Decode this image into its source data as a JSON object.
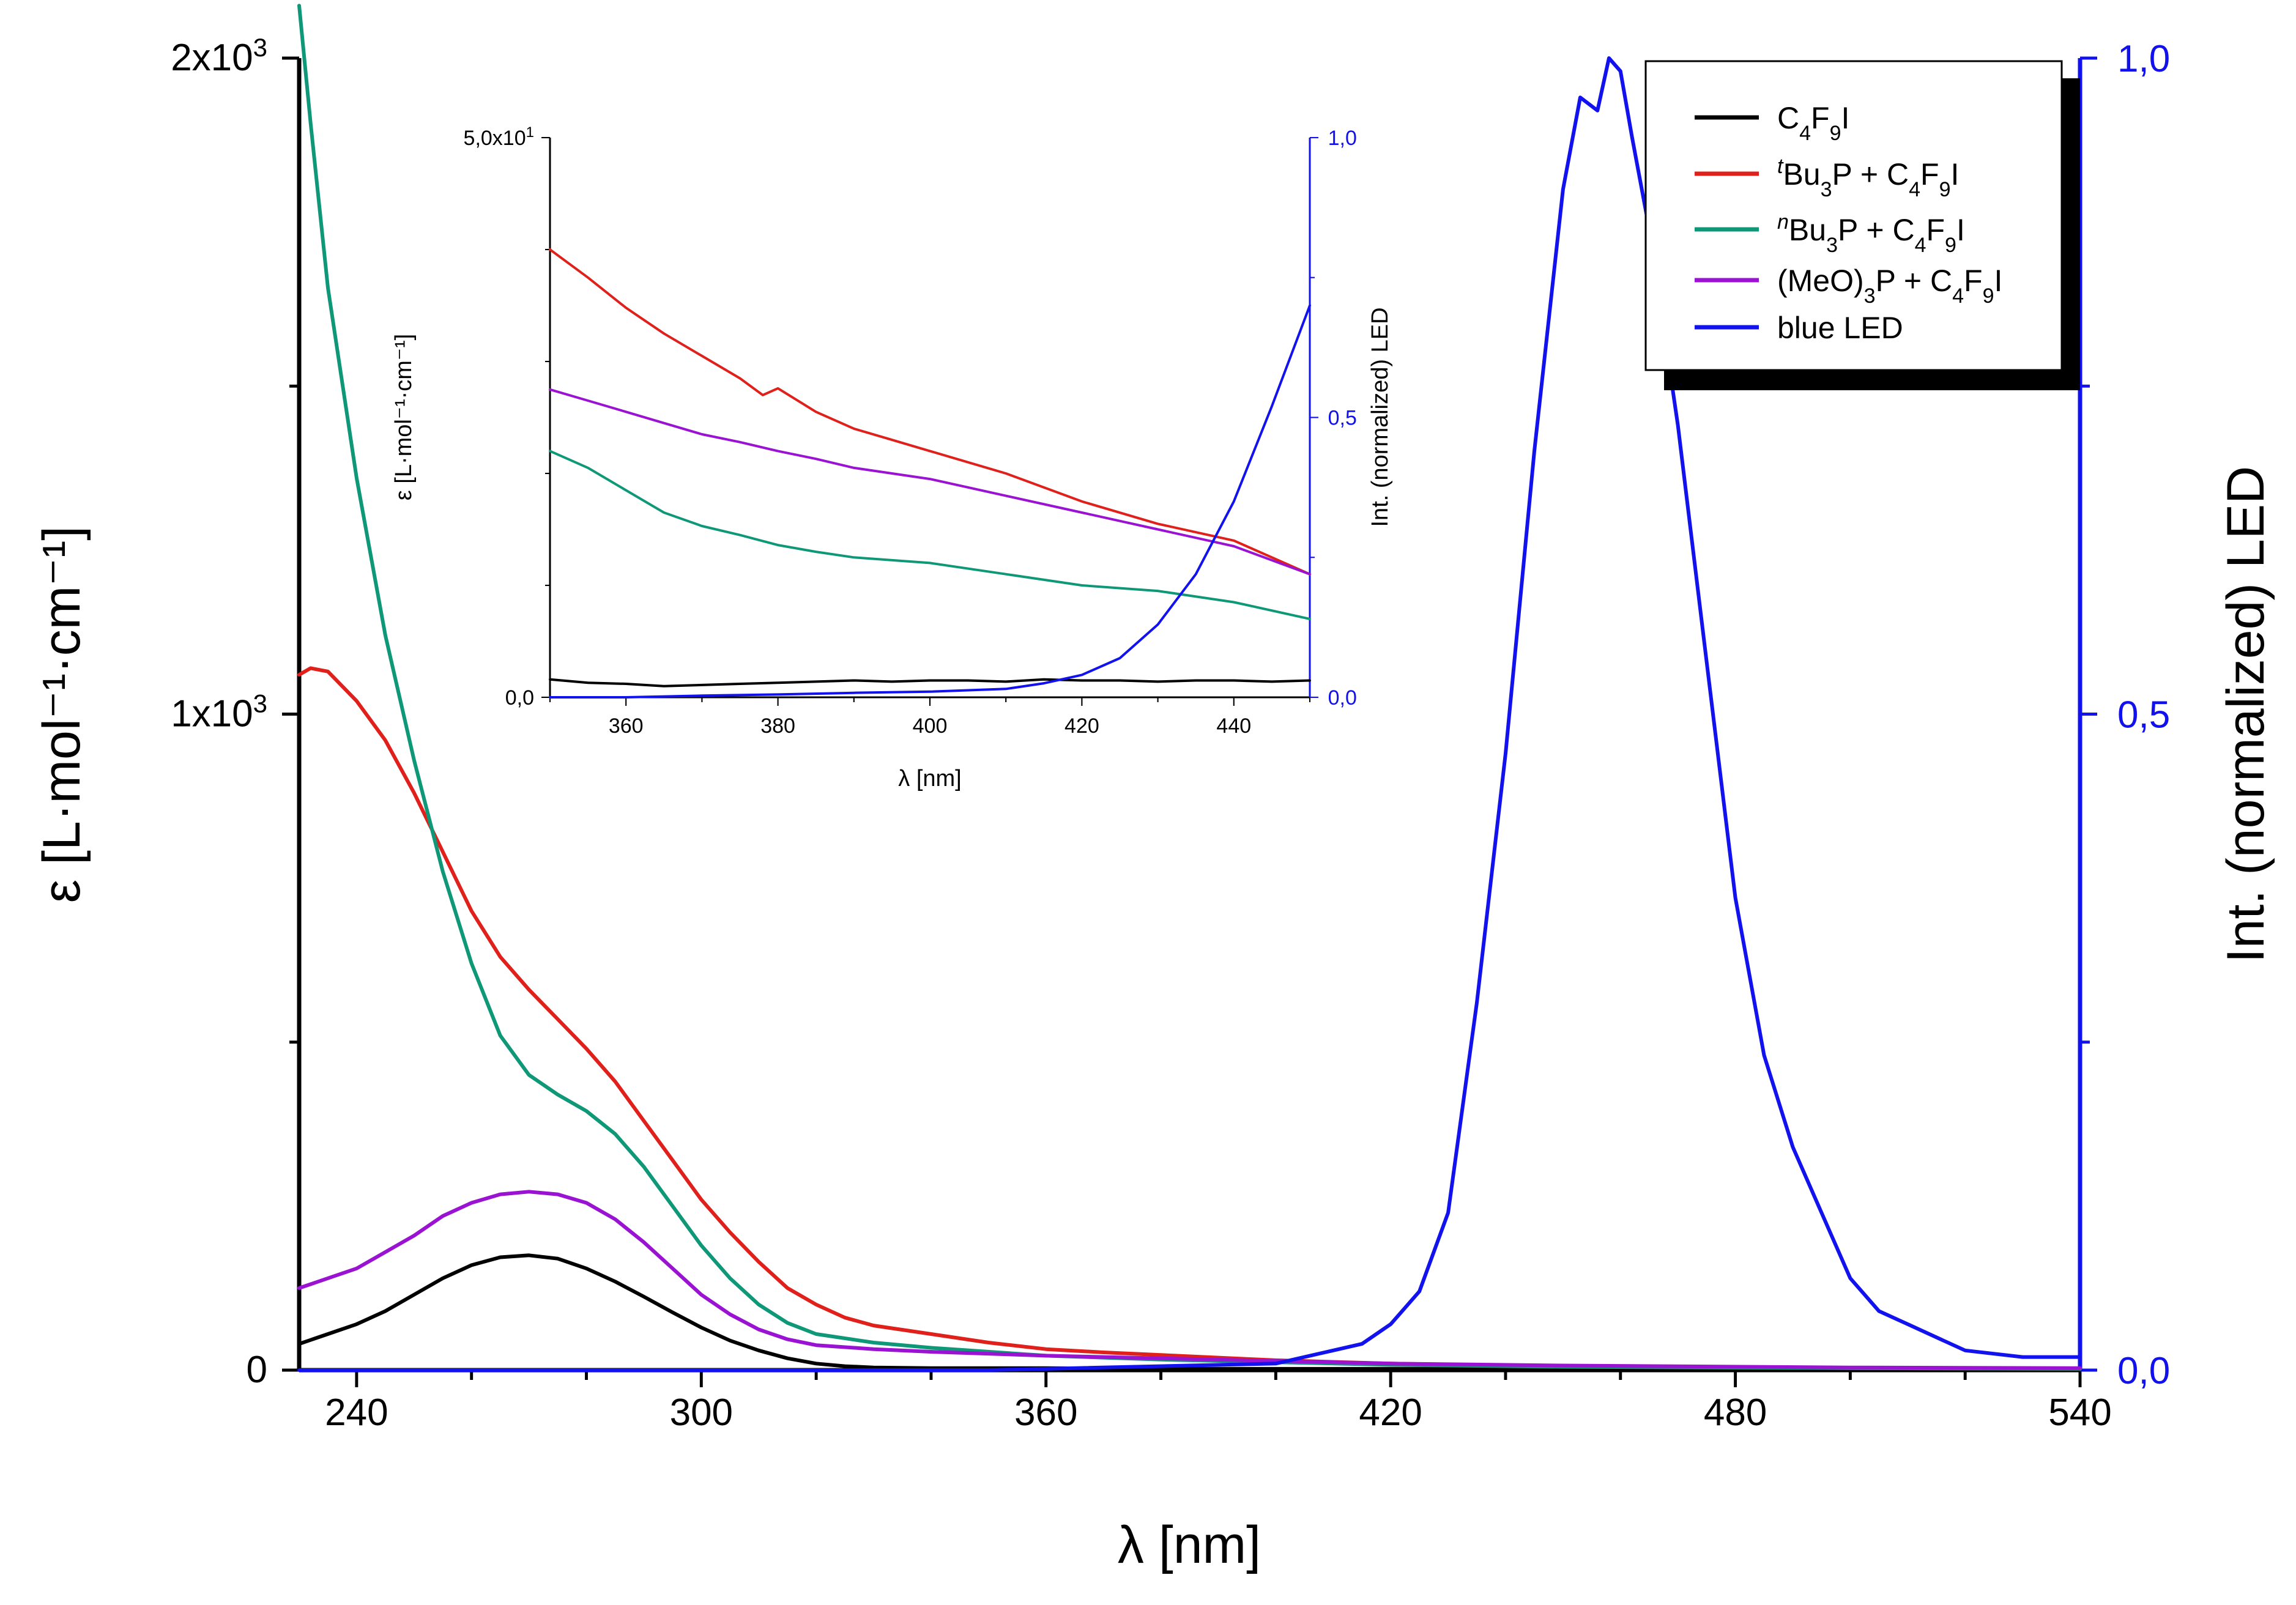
{
  "chart_data": [
    {
      "type": "line",
      "id": "main",
      "xlabel": "λ [nm]",
      "ylabel": "ε [L·mol⁻¹·cm⁻¹]",
      "y2label": "Int. (normalized) LED",
      "xlim": [
        230,
        540
      ],
      "ylim": [
        0,
        2000
      ],
      "y2lim": [
        0,
        1.0
      ],
      "xticks": [
        240,
        300,
        360,
        420,
        480,
        540
      ],
      "xtick_labels": [
        "240",
        "300",
        "360",
        "420",
        "480",
        "540"
      ],
      "yticks": [
        0,
        1000,
        2000
      ],
      "ytick_labels": [
        "0",
        "1x10³",
        "2x10³"
      ],
      "y2ticks": [
        0,
        0.5,
        1.0
      ],
      "y2tick_labels": [
        "0,0",
        "0,5",
        "1,0"
      ],
      "legend": {
        "position": "top-right",
        "entries": [
          "C4F9I",
          "tBu3P + C4F9I",
          "nBu3P + C4F9I",
          "(MeO)3P + C4F9I",
          "blue LED"
        ]
      },
      "series": [
        {
          "name": "C4F9I",
          "color": "#000000",
          "axis": "left",
          "x": [
            230,
            235,
            240,
            245,
            250,
            255,
            260,
            265,
            270,
            275,
            280,
            285,
            290,
            295,
            300,
            305,
            310,
            315,
            320,
            325,
            330,
            340,
            360,
            380,
            400,
            450,
            500,
            540
          ],
          "y": [
            40,
            55,
            70,
            90,
            115,
            140,
            160,
            172,
            175,
            170,
            155,
            135,
            112,
            88,
            65,
            45,
            30,
            18,
            10,
            6,
            4,
            3,
            3,
            2,
            2,
            2,
            2,
            2
          ]
        },
        {
          "name": "tBu3P + C4F9I",
          "color": "#e0201b",
          "axis": "left",
          "x": [
            230,
            232,
            235,
            240,
            245,
            250,
            255,
            260,
            265,
            270,
            275,
            280,
            285,
            290,
            295,
            300,
            305,
            310,
            315,
            320,
            325,
            330,
            340,
            350,
            360,
            370,
            380,
            390,
            400,
            420,
            450,
            500,
            540
          ],
          "y": [
            1060,
            1070,
            1065,
            1020,
            960,
            880,
            790,
            700,
            630,
            580,
            535,
            490,
            440,
            380,
            320,
            260,
            210,
            165,
            125,
            100,
            80,
            68,
            55,
            42,
            32,
            27,
            23,
            19,
            15,
            10,
            6,
            3,
            2
          ]
        },
        {
          "name": "nBu3P + C4F9I",
          "color": "#0f9878",
          "axis": "left",
          "x": [
            230,
            232,
            235,
            240,
            245,
            250,
            255,
            260,
            265,
            270,
            275,
            280,
            285,
            290,
            295,
            300,
            305,
            310,
            315,
            320,
            330,
            340,
            360,
            380,
            400,
            420,
            450,
            500,
            540
          ],
          "y": [
            2080,
            1900,
            1650,
            1360,
            1120,
            930,
            760,
            620,
            510,
            450,
            420,
            395,
            360,
            310,
            250,
            190,
            140,
            100,
            72,
            55,
            42,
            34,
            22,
            16,
            12,
            8,
            5,
            3,
            2
          ]
        },
        {
          "name": "(MeO)3P + C4F9I",
          "color": "#9a12d2",
          "axis": "left",
          "x": [
            230,
            235,
            240,
            245,
            250,
            255,
            260,
            265,
            270,
            275,
            280,
            285,
            290,
            295,
            300,
            305,
            310,
            315,
            320,
            330,
            340,
            360,
            380,
            400,
            420,
            450,
            500,
            540
          ],
          "y": [
            125,
            140,
            155,
            180,
            205,
            235,
            255,
            268,
            272,
            268,
            255,
            230,
            195,
            155,
            115,
            85,
            62,
            47,
            38,
            32,
            28,
            22,
            18,
            14,
            10,
            7,
            4,
            3
          ]
        },
        {
          "name": "blue LED",
          "color": "#1212ee",
          "axis": "right",
          "x": [
            230,
            300,
            350,
            400,
            410,
            415,
            420,
            425,
            430,
            435,
            440,
            445,
            450,
            453,
            456,
            458,
            460,
            462,
            465,
            470,
            475,
            480,
            485,
            490,
            495,
            500,
            505,
            510,
            515,
            520,
            530,
            540
          ],
          "y": [
            0,
            0,
            0,
            0.005,
            0.015,
            0.02,
            0.035,
            0.06,
            0.12,
            0.28,
            0.47,
            0.7,
            0.9,
            0.97,
            0.96,
            1.0,
            0.99,
            0.94,
            0.87,
            0.72,
            0.54,
            0.36,
            0.24,
            0.17,
            0.12,
            0.07,
            0.045,
            0.035,
            0.025,
            0.015,
            0.01,
            0.01
          ]
        }
      ]
    },
    {
      "type": "line",
      "id": "inset",
      "xlabel": "λ [nm]",
      "ylabel": "ε [L·mol⁻¹·cm⁻¹]",
      "y2label": "Int. (normalized) LED",
      "xlim": [
        350,
        450
      ],
      "ylim": [
        0,
        50
      ],
      "y2lim": [
        0,
        1.0
      ],
      "xticks": [
        360,
        380,
        400,
        420,
        440
      ],
      "xtick_labels": [
        "360",
        "380",
        "400",
        "420",
        "440"
      ],
      "yticks": [
        0,
        50
      ],
      "ytick_labels": [
        "0,0",
        "5,0x10¹"
      ],
      "y2ticks": [
        0,
        0.5,
        1.0
      ],
      "y2tick_labels": [
        "0,0",
        "0,5",
        "1,0"
      ],
      "series": [
        {
          "name": "C4F9I",
          "color": "#000000",
          "axis": "left",
          "x": [
            350,
            355,
            360,
            365,
            370,
            375,
            380,
            385,
            390,
            395,
            400,
            405,
            410,
            415,
            420,
            425,
            430,
            435,
            440,
            445,
            450
          ],
          "y": [
            1.6,
            1.3,
            1.2,
            1.0,
            1.1,
            1.2,
            1.3,
            1.4,
            1.5,
            1.4,
            1.5,
            1.5,
            1.4,
            1.6,
            1.5,
            1.5,
            1.4,
            1.5,
            1.5,
            1.4,
            1.5
          ]
        },
        {
          "name": "tBu3P + C4F9I",
          "color": "#e0201b",
          "axis": "left",
          "x": [
            350,
            355,
            360,
            365,
            370,
            375,
            378,
            380,
            385,
            390,
            395,
            400,
            410,
            420,
            430,
            440,
            450
          ],
          "y": [
            40.0,
            37.5,
            34.8,
            32.5,
            30.5,
            28.5,
            27.0,
            27.6,
            25.5,
            24.0,
            23.0,
            22.0,
            20.0,
            17.5,
            15.5,
            14.0,
            11.0
          ]
        },
        {
          "name": "nBu3P + C4F9I",
          "color": "#0f9878",
          "axis": "left",
          "x": [
            350,
            355,
            360,
            365,
            370,
            375,
            380,
            385,
            390,
            400,
            410,
            420,
            430,
            440,
            450
          ],
          "y": [
            22.0,
            20.5,
            18.5,
            16.5,
            15.3,
            14.5,
            13.6,
            13.0,
            12.5,
            12.0,
            11.0,
            10.0,
            9.5,
            8.5,
            7.0
          ]
        },
        {
          "name": "(MeO)3P + C4F9I",
          "color": "#9a12d2",
          "axis": "left",
          "x": [
            350,
            355,
            360,
            365,
            370,
            375,
            380,
            385,
            390,
            400,
            410,
            420,
            430,
            440,
            450
          ],
          "y": [
            27.5,
            26.5,
            25.5,
            24.5,
            23.5,
            22.8,
            22.0,
            21.3,
            20.5,
            19.5,
            18.0,
            16.5,
            15.0,
            13.5,
            11.0
          ]
        },
        {
          "name": "blue LED",
          "color": "#1212ee",
          "axis": "right",
          "x": [
            350,
            360,
            370,
            380,
            390,
            400,
            410,
            415,
            420,
            425,
            430,
            435,
            440,
            445,
            450
          ],
          "y": [
            0,
            0,
            0.003,
            0.005,
            0.008,
            0.01,
            0.015,
            0.025,
            0.04,
            0.07,
            0.13,
            0.22,
            0.35,
            0.52,
            0.7
          ]
        }
      ]
    }
  ]
}
